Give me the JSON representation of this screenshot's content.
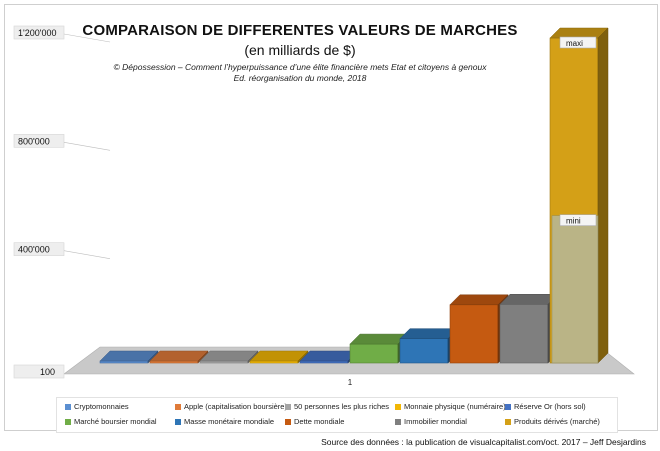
{
  "title": "COMPARAISON DE DIFFERENTES VALEURS DE MARCHES",
  "subtitle": "(en milliards de $)",
  "credit_line1": "© Dépossession –  Comment l’hyperpuissance d’une élite financière  mets Etat et citoyens à genoux",
  "credit_line2": "Ed. réorganisation du monde, 2018",
  "source": "Source des données : la publication de visualcapitalist.com/oct. 2017 – Jeff Desjardins",
  "chart_data": {
    "type": "bar",
    "title": "COMPARAISON DE DIFFERENTES VALEURS DE MARCHES",
    "subtitle": "(en milliards de $)",
    "categories": [
      "1"
    ],
    "y_ticks": [
      "100",
      "400'000",
      "800'000",
      "1'200'000"
    ],
    "ylim": [
      100,
      1200000
    ],
    "grid": false,
    "legend_position": "bottom",
    "series": [
      {
        "name": "Cryptomonnaies",
        "value": 100,
        "color": "#5b8fd1"
      },
      {
        "name": "Apple (capitalisation boursière)",
        "value": 100,
        "color": "#e07b39"
      },
      {
        "name": "50 personnes les plus riches",
        "value": 100,
        "color": "#a5a5a5"
      },
      {
        "name": "Monnaie physique (numéraire)",
        "value": 100,
        "color": "#f2b705"
      },
      {
        "name": "Réserve Or (hors sol)",
        "value": 100,
        "color": "#4472c4"
      },
      {
        "name": "Marché boursier mondial",
        "value": 70000,
        "color": "#70ad47"
      },
      {
        "name": "Masse monétaire mondiale",
        "value": 90000,
        "color": "#2e75b6"
      },
      {
        "name": "Dette mondiale",
        "value": 215000,
        "color": "#c55a11"
      },
      {
        "name": "Immobilier mondial",
        "value": 217000,
        "color": "#7f7f7f"
      },
      {
        "name": "Produits dérivés (marché)",
        "value": 1200000,
        "color": "#d4a017"
      }
    ],
    "annotations": [
      {
        "label": "maxi",
        "value": 1200000
      },
      {
        "label": "mini",
        "value": 544000
      }
    ]
  }
}
